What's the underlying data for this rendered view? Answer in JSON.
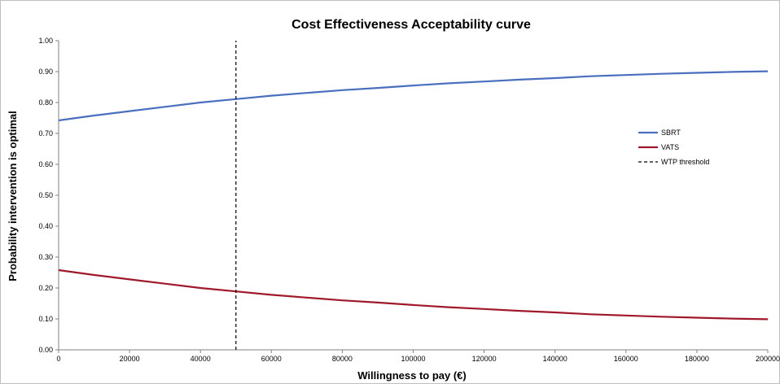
{
  "chart_data": {
    "type": "line",
    "title": "Cost Effectiveness Acceptability curve",
    "xlabel": "Willingness to pay (€)",
    "ylabel": "Probability intervention is optimal",
    "xlim": [
      0,
      200000
    ],
    "ylim": [
      0,
      1
    ],
    "x_ticks": [
      "0",
      "20000",
      "40000",
      "60000",
      "80000",
      "100000",
      "120000",
      "140000",
      "160000",
      "180000",
      "200000"
    ],
    "y_ticks": [
      "0.00",
      "0.10",
      "0.20",
      "0.30",
      "0.40",
      "0.50",
      "0.60",
      "0.70",
      "0.80",
      "0.90",
      "1.00"
    ],
    "grid": false,
    "legend_position": "right",
    "series": [
      {
        "name": "SBRT",
        "color": "#4a6fbf",
        "style": "solid",
        "x": [
          0,
          10000,
          20000,
          30000,
          40000,
          50000,
          60000,
          70000,
          80000,
          90000,
          100000,
          110000,
          120000,
          130000,
          140000,
          150000,
          160000,
          170000,
          180000,
          190000,
          200000
        ],
        "values": [
          0.742,
          0.758,
          0.772,
          0.786,
          0.8,
          0.811,
          0.822,
          0.831,
          0.84,
          0.847,
          0.855,
          0.862,
          0.868,
          0.874,
          0.879,
          0.885,
          0.889,
          0.893,
          0.896,
          0.899,
          0.901
        ]
      },
      {
        "name": "VATS",
        "color": "#a0192a",
        "style": "solid",
        "x": [
          0,
          10000,
          20000,
          30000,
          40000,
          50000,
          60000,
          70000,
          80000,
          90000,
          100000,
          110000,
          120000,
          130000,
          140000,
          150000,
          160000,
          170000,
          180000,
          190000,
          200000
        ],
        "values": [
          0.258,
          0.242,
          0.228,
          0.214,
          0.2,
          0.189,
          0.178,
          0.169,
          0.16,
          0.153,
          0.145,
          0.138,
          0.132,
          0.126,
          0.121,
          0.115,
          0.111,
          0.107,
          0.104,
          0.101,
          0.099
        ]
      },
      {
        "name": "WTP threshold",
        "color": "#000000",
        "style": "dashed",
        "x": [
          50000,
          50000
        ],
        "values": [
          0,
          1
        ]
      }
    ]
  }
}
